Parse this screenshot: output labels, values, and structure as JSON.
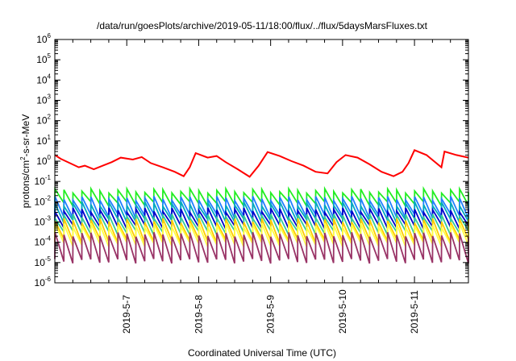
{
  "chart_data": {
    "type": "line",
    "title": "/data/run/goesPlots/archive/2019-05-11/18:00/flux/../flux/5daysMarsFluxes.txt",
    "xlabel": "Coordinated Universal Time (UTC)",
    "ylabel": {
      "prefix": "protons/cm",
      "sup": "2",
      "suffix": "-s-sr-MeV"
    },
    "y_scale": "log",
    "ylim": [
      1e-06,
      1000000.0
    ],
    "y_ticks": [
      {
        "value": 1e-06,
        "base": "10",
        "exp": "-6"
      },
      {
        "value": 1e-05,
        "base": "10",
        "exp": "-5"
      },
      {
        "value": 0.0001,
        "base": "10",
        "exp": "-4"
      },
      {
        "value": 0.001,
        "base": "10",
        "exp": "-3"
      },
      {
        "value": 0.01,
        "base": "10",
        "exp": "-2"
      },
      {
        "value": 0.1,
        "base": "10",
        "exp": "-1"
      },
      {
        "value": 1.0,
        "base": "10",
        "exp": "0"
      },
      {
        "value": 10.0,
        "base": "10",
        "exp": "1"
      },
      {
        "value": 100.0,
        "base": "10",
        "exp": "2"
      },
      {
        "value": 1000.0,
        "base": "10",
        "exp": "3"
      },
      {
        "value": 10000.0,
        "base": "10",
        "exp": "4"
      },
      {
        "value": 100000.0,
        "base": "10",
        "exp": "5"
      },
      {
        "value": 1000000.0,
        "base": "10",
        "exp": "6"
      }
    ],
    "xlim": [
      "2019-05-06 00:00",
      "2019-05-11 18:00"
    ],
    "x_ticks": [
      "2019-5-7",
      "2019-5-8",
      "2019-5-9",
      "2019-5-10",
      "2019-5-11"
    ],
    "grid": false,
    "series": [
      {
        "color": "#ff0000",
        "pattern": "daily_decay",
        "points": [
          [
            "2019-05-06 00:00",
            2.0
          ],
          [
            "2019-05-06 02:00",
            1.3
          ],
          [
            "2019-05-06 05:00",
            0.8
          ],
          [
            "2019-05-06 08:00",
            0.5
          ],
          [
            "2019-05-06 10:00",
            0.6
          ],
          [
            "2019-05-06 13:00",
            0.4
          ],
          [
            "2019-05-06 16:00",
            0.6
          ],
          [
            "2019-05-06 19:00",
            0.9
          ],
          [
            "2019-05-06 22:00",
            1.5
          ],
          [
            "2019-05-07 02:00",
            1.2
          ],
          [
            "2019-05-07 05:00",
            1.6
          ],
          [
            "2019-05-07 08:00",
            0.8
          ],
          [
            "2019-05-07 12:00",
            0.5
          ],
          [
            "2019-05-07 16:00",
            0.3
          ],
          [
            "2019-05-07 19:00",
            0.18
          ],
          [
            "2019-05-07 21:00",
            0.5
          ],
          [
            "2019-05-07 23:00",
            2.5
          ],
          [
            "2019-05-08 03:00",
            1.5
          ],
          [
            "2019-05-08 06:00",
            1.8
          ],
          [
            "2019-05-08 09:00",
            0.9
          ],
          [
            "2019-05-08 13:00",
            0.4
          ],
          [
            "2019-05-08 17:00",
            0.17
          ],
          [
            "2019-05-08 20:00",
            0.6
          ],
          [
            "2019-05-08 23:00",
            2.8
          ],
          [
            "2019-05-09 03:00",
            1.8
          ],
          [
            "2019-05-09 07:00",
            1.0
          ],
          [
            "2019-05-09 11:00",
            0.6
          ],
          [
            "2019-05-09 15:00",
            0.3
          ],
          [
            "2019-05-09 19:00",
            0.25
          ],
          [
            "2019-05-09 22:00",
            0.9
          ],
          [
            "2019-05-10 01:00",
            2.0
          ],
          [
            "2019-05-10 05:00",
            1.5
          ],
          [
            "2019-05-10 09:00",
            0.7
          ],
          [
            "2019-05-10 13:00",
            0.3
          ],
          [
            "2019-05-10 17:00",
            0.18
          ],
          [
            "2019-05-10 20:00",
            0.3
          ],
          [
            "2019-05-10 22:00",
            0.8
          ],
          [
            "2019-05-11 00:00",
            3.5
          ],
          [
            "2019-05-11 04:00",
            2.0
          ],
          [
            "2019-05-11 09:00",
            0.5
          ],
          [
            "2019-05-11 10:00",
            3.0
          ],
          [
            "2019-05-11 14:00",
            2.0
          ],
          [
            "2019-05-11 18:00",
            1.5
          ]
        ]
      },
      {
        "color": "#22ee22",
        "pattern": "sawtooth",
        "period_hours": 3,
        "high": 0.035,
        "low": 0.008
      },
      {
        "color": "#2080ff",
        "pattern": "sawtooth",
        "period_hours": 3,
        "high": 0.015,
        "low": 0.002
      },
      {
        "color": "#00a8c0",
        "pattern": "sawtooth",
        "period_hours": 3,
        "high": 0.008,
        "low": 0.0012
      },
      {
        "color": "#0000cc",
        "pattern": "sawtooth",
        "period_hours": 3,
        "high": 0.004,
        "low": 0.0006
      },
      {
        "color": "#33cc99",
        "pattern": "sawtooth",
        "period_hours": 3,
        "high": 0.002,
        "low": 0.0003
      },
      {
        "color": "#ffcc00",
        "pattern": "sawtooth",
        "period_hours": 3,
        "high": 0.0012,
        "low": 0.00012
      },
      {
        "color": "#ffff44",
        "pattern": "sawtooth",
        "period_hours": 3,
        "high": 0.0007,
        "low": 8e-05
      },
      {
        "color": "#993366",
        "pattern": "sawtooth",
        "period_hours": 3,
        "high": 0.00025,
        "low": 1.2e-05
      }
    ]
  }
}
